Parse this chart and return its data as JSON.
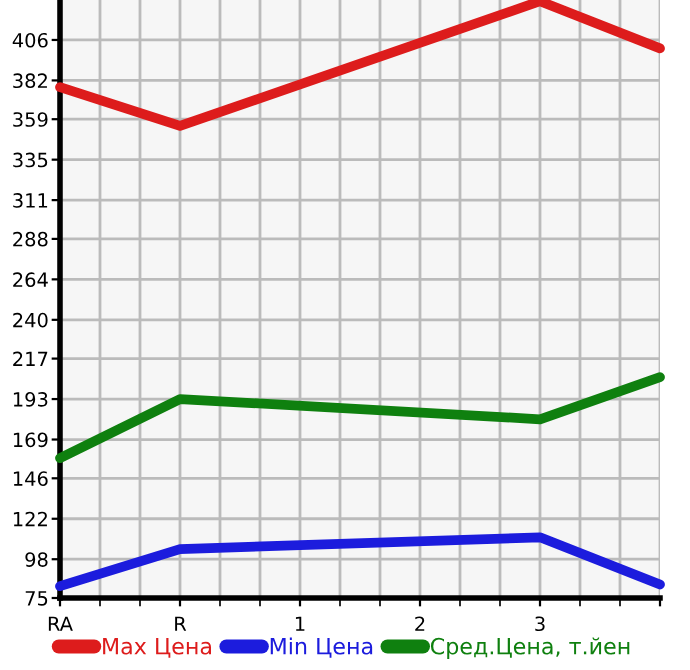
{
  "chart_data": {
    "type": "line",
    "categories": [
      "RA",
      "R",
      "1",
      "2",
      "3",
      null
    ],
    "series": [
      {
        "name": "Max Цена",
        "color": "#dd1c1c",
        "values": [
          378,
          355,
          null,
          null,
          429,
          401
        ]
      },
      {
        "name": "Min Цена",
        "color": "#1c1cdd",
        "values": [
          82,
          104,
          null,
          null,
          111,
          83
        ]
      },
      {
        "name": "Сред.Цена, т.йен",
        "color": "#0f800f",
        "values": [
          158,
          193,
          null,
          null,
          181,
          206
        ]
      }
    ],
    "ylim": [
      75,
      429.7
    ],
    "yticks": [
      75,
      98,
      122,
      146,
      169,
      193,
      217,
      240,
      264,
      288,
      311,
      335,
      359,
      382,
      406
    ],
    "grid": true,
    "legend": "bottom",
    "marker": "none",
    "line_style": "solid"
  }
}
